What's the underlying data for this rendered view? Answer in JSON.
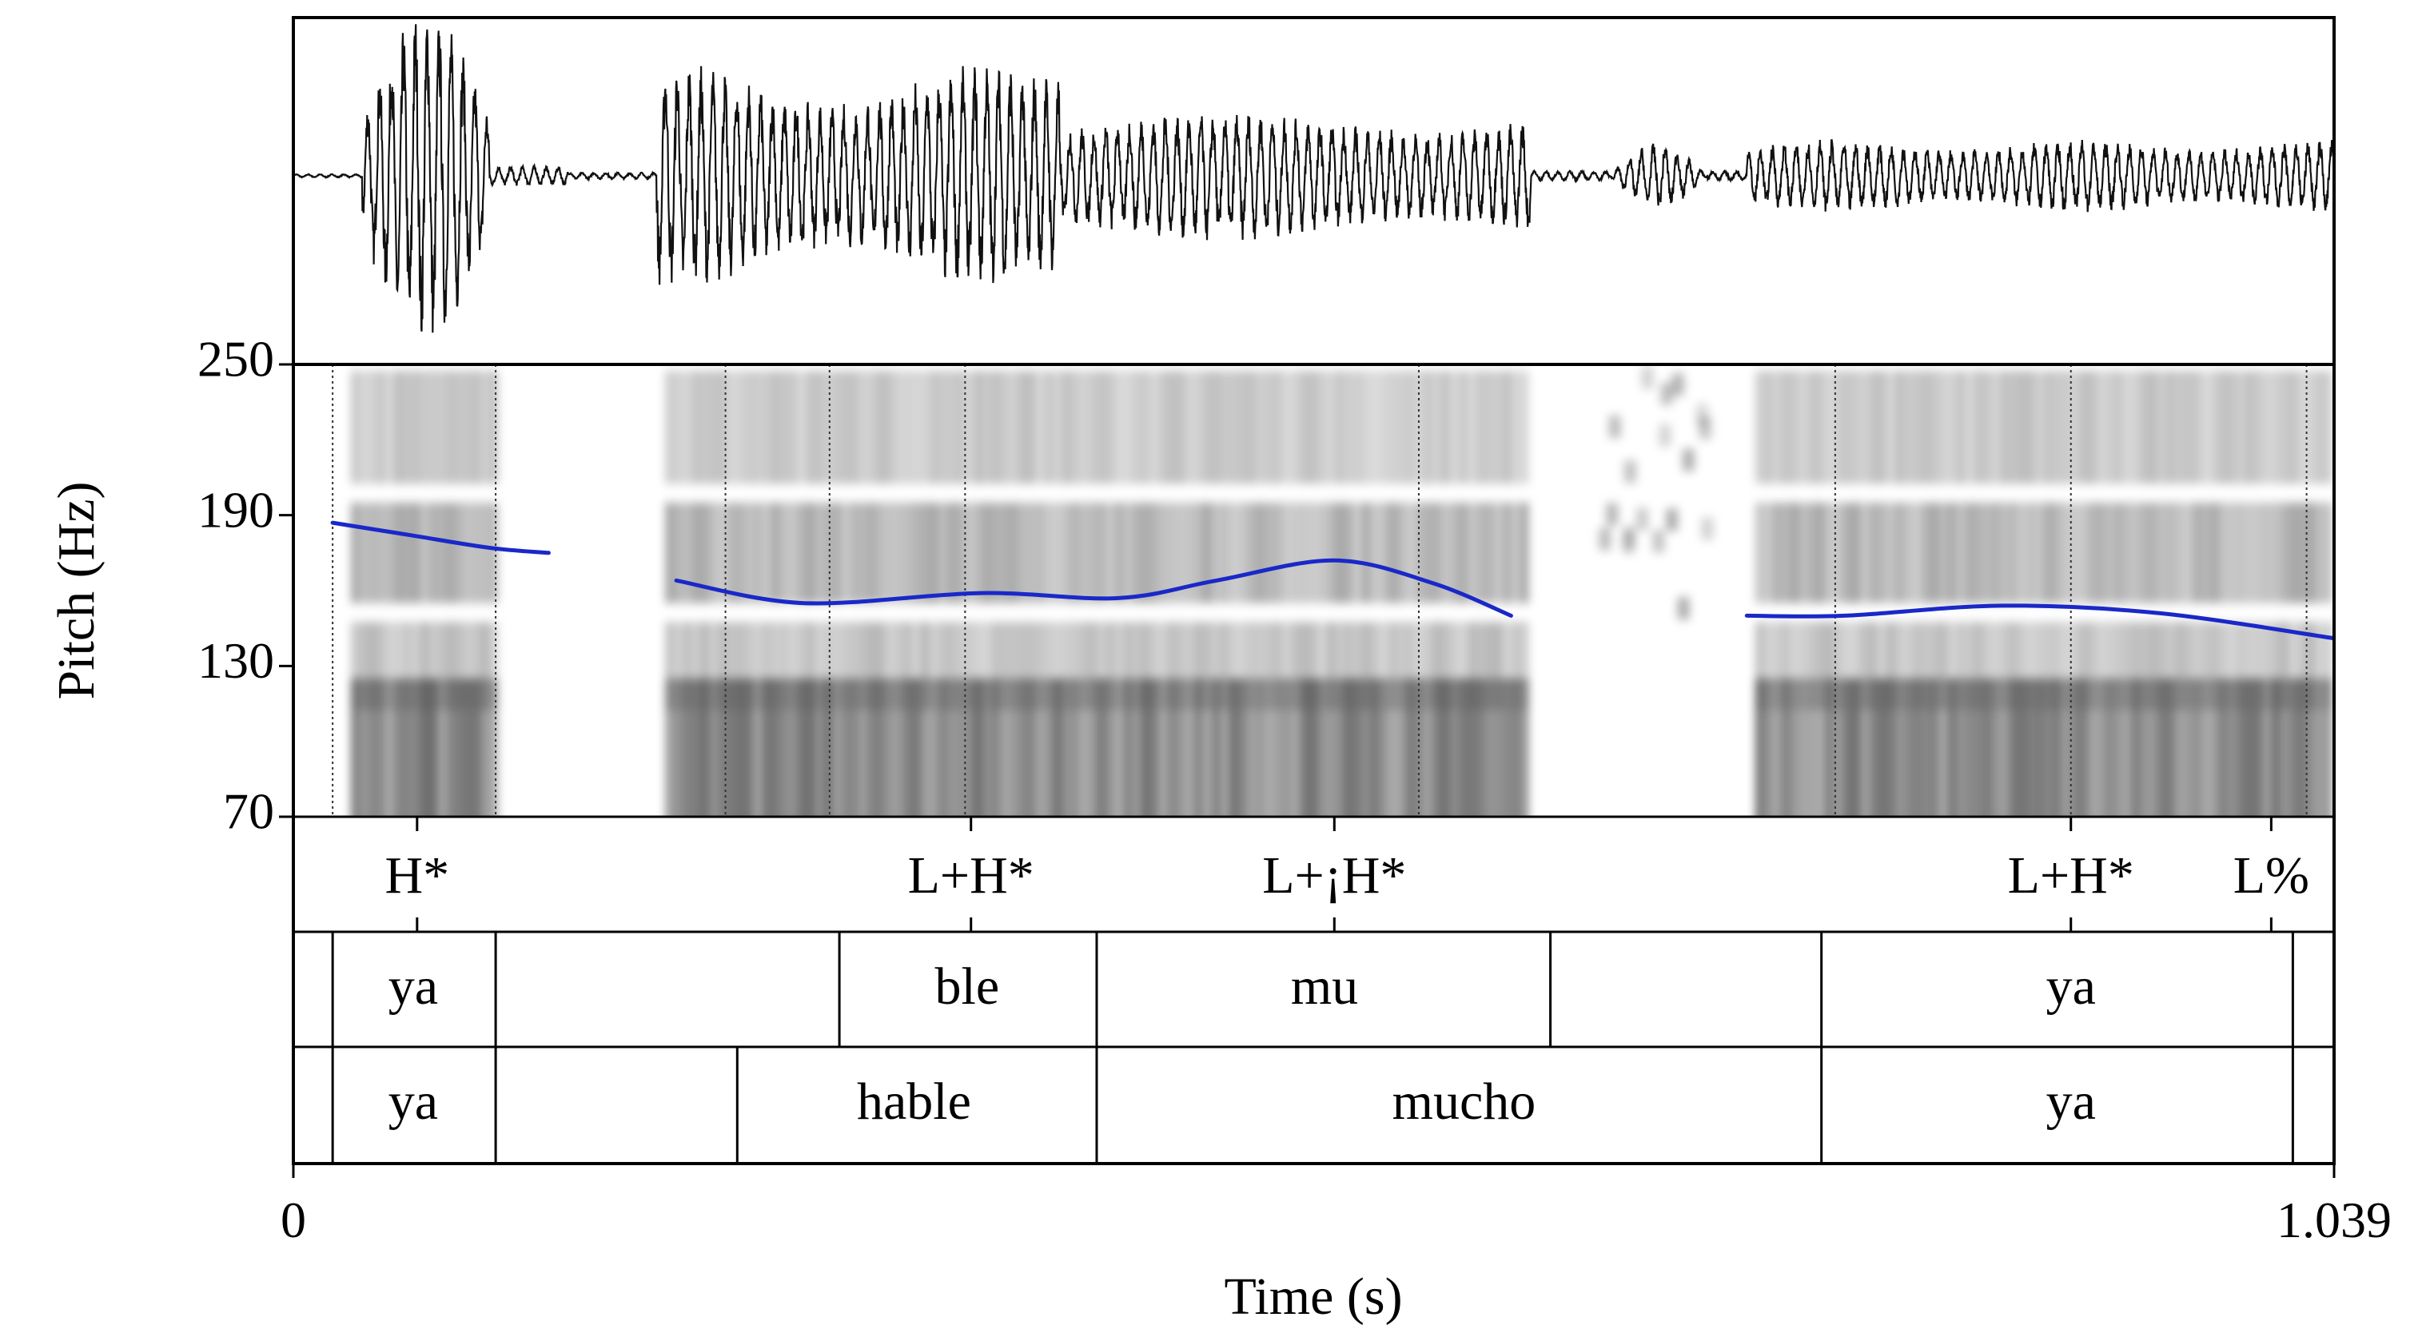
{
  "chart_data": {
    "type": "line",
    "xlabel": "Time (s)",
    "ylabel": "Pitch (Hz)",
    "xlim": [
      0,
      1.039
    ],
    "ylim": [
      70,
      250
    ],
    "x_ticks": [
      "0",
      "1.039"
    ],
    "y_ticks": [
      {
        "value": 250,
        "label": "250"
      },
      {
        "value": 190,
        "label": "190"
      },
      {
        "value": 130,
        "label": "130"
      },
      {
        "value": 70,
        "label": "70"
      }
    ],
    "grid": false,
    "legend": "none",
    "pitch_color": "#1a28c8",
    "series": [
      {
        "segment": 1,
        "x": [
          0.02,
          0.06,
          0.1,
          0.13
        ],
        "values": [
          187,
          182,
          177,
          175
        ]
      },
      {
        "segment": 2,
        "x": [
          0.195,
          0.26,
          0.35,
          0.42,
          0.47,
          0.53,
          0.58,
          0.62
        ],
        "values": [
          164,
          155,
          159,
          157,
          164,
          172,
          163,
          150
        ]
      },
      {
        "segment": 3,
        "x": [
          0.74,
          0.79,
          0.87,
          0.95,
          1.039
        ],
        "values": [
          150,
          150,
          154,
          151,
          141
        ]
      }
    ],
    "boundaries": [
      0.02,
      0.103,
      0.22,
      0.273,
      0.342,
      0.573,
      0.785,
      0.905,
      1.025
    ],
    "tones": [
      {
        "label": "H*",
        "x": 0.063
      },
      {
        "label": "L+H*",
        "x": 0.345
      },
      {
        "label": "L+¡H*",
        "x": 0.53
      },
      {
        "label": "L+H*",
        "x": 0.905
      },
      {
        "label": "L%",
        "x": 1.007
      }
    ],
    "syllables": [
      {
        "label": "ya",
        "x": 0.061
      },
      {
        "label": "ble",
        "x": 0.343
      },
      {
        "label": "mu",
        "x": 0.525
      },
      {
        "label": "ya",
        "x": 0.905
      }
    ],
    "words": [
      {
        "label": "ya",
        "x": 0.061
      },
      {
        "label": "hable",
        "x": 0.316
      },
      {
        "label": "mucho",
        "x": 0.596
      },
      {
        "label": "ya",
        "x": 0.905
      }
    ],
    "syllable_boundaries": [
      0.02,
      0.103,
      0.278,
      0.409,
      0.64,
      0.778,
      1.018
    ],
    "word_boundaries": [
      0.02,
      0.103,
      0.226,
      0.409,
      0.778,
      1.018
    ]
  }
}
